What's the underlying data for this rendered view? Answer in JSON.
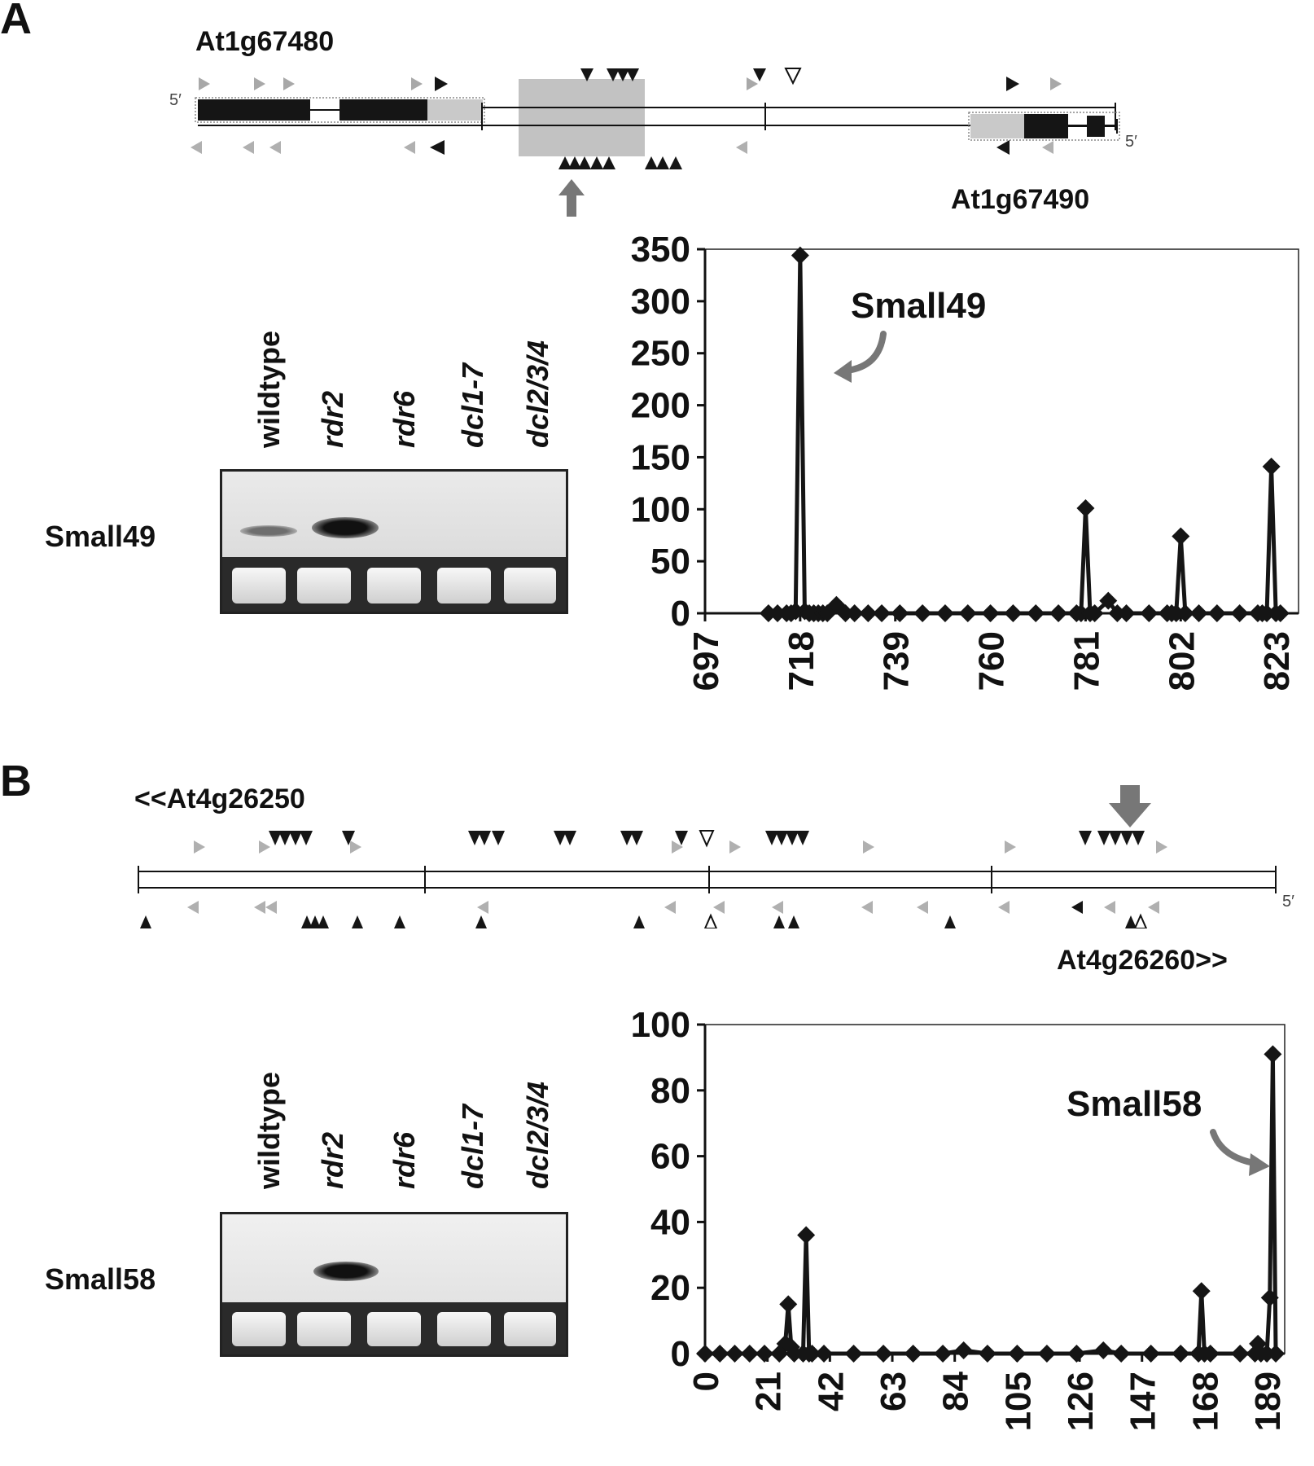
{
  "panel_a": {
    "letter": "A",
    "gene_top": "At1g67480",
    "gene_bottom": "At1g67490",
    "prime_left": "5′",
    "prime_right": "5′",
    "blot": {
      "probe": "Small49",
      "lanes": [
        "wildtype",
        "rdr2",
        "rdr6",
        "dcl1-7",
        "dcl2/3/4"
      ]
    },
    "chart_data": {
      "type": "line",
      "annotation": "Small49",
      "xticks": [
        "697",
        "718",
        "739",
        "760",
        "781",
        "802",
        "823"
      ],
      "yticks": [
        "0",
        "50",
        "100",
        "150",
        "200",
        "250",
        "300",
        "350"
      ],
      "xlim": [
        697,
        828
      ],
      "ylim": [
        0,
        350
      ],
      "series": [
        {
          "x": [
            711,
            713,
            715,
            716,
            717,
            718,
            719,
            720,
            721,
            722,
            723,
            724,
            726,
            728,
            730,
            733,
            736,
            740,
            745,
            750,
            755,
            760,
            765,
            770,
            775,
            779,
            780,
            781,
            782,
            783,
            786,
            788,
            790,
            795,
            799,
            800,
            801,
            802,
            803,
            806,
            810,
            815,
            819,
            820,
            821,
            822,
            823,
            824
          ],
          "y": [
            0,
            0,
            0,
            0,
            2,
            344,
            2,
            0,
            0,
            0,
            0,
            0,
            8,
            0,
            0,
            0,
            0,
            0,
            0,
            0,
            0,
            0,
            0,
            0,
            0,
            0,
            0,
            101,
            0,
            0,
            12,
            0,
            0,
            0,
            0,
            0,
            0,
            74,
            0,
            0,
            0,
            0,
            0,
            0,
            0,
            141,
            0,
            0
          ]
        }
      ]
    }
  },
  "panel_b": {
    "letter": "B",
    "gene_top": "<<At4g26250",
    "gene_bottom": "At4g26260>>",
    "prime_right": "5′",
    "blot": {
      "probe": "Small58",
      "lanes": [
        "wildtype",
        "rdr2",
        "rdr6",
        "dcl1-7",
        "dcl2/3/4"
      ]
    },
    "chart_data": {
      "type": "line",
      "annotation": "Small58",
      "xticks": [
        "0",
        "21",
        "42",
        "63",
        "84",
        "105",
        "126",
        "147",
        "168",
        "189"
      ],
      "yticks": [
        "0",
        "20",
        "40",
        "60",
        "80",
        "100"
      ],
      "xlim": [
        0,
        195
      ],
      "ylim": [
        0,
        100
      ],
      "series": [
        {
          "x": [
            0,
            5,
            10,
            15,
            20,
            25,
            27,
            28,
            29,
            30,
            33,
            34,
            35,
            36,
            40,
            50,
            60,
            70,
            80,
            87,
            95,
            105,
            115,
            125,
            134,
            140,
            150,
            160,
            166,
            167,
            168,
            170,
            180,
            185,
            186,
            187,
            189,
            190,
            191,
            192
          ],
          "y": [
            0,
            0,
            0,
            0,
            0,
            0,
            3,
            15,
            2,
            0,
            0,
            36,
            0,
            0,
            0,
            0,
            0,
            0,
            0,
            1,
            0,
            0,
            0,
            0,
            1,
            0,
            0,
            0,
            0,
            19,
            0,
            0,
            0,
            0,
            3,
            0,
            0,
            17,
            91,
            0
          ]
        }
      ]
    }
  }
}
